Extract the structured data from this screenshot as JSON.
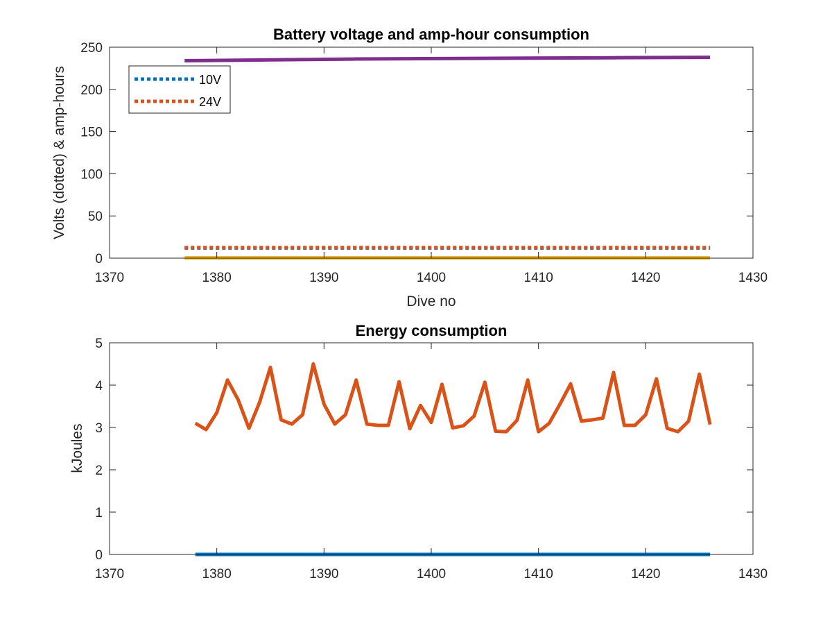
{
  "chart_data": [
    {
      "type": "line",
      "title": "Battery voltage and amp-hour consumption",
      "xlabel": "Dive no",
      "ylabel": "Volts (dotted) & amp-hours",
      "xlim": [
        1370,
        1430
      ],
      "ylim": [
        0,
        250
      ],
      "xticks": [
        1370,
        1380,
        1390,
        1400,
        1410,
        1420,
        1430
      ],
      "yticks": [
        0,
        50,
        100,
        150,
        200,
        250
      ],
      "legend_position": "top-left",
      "grid": false,
      "series": [
        {
          "name": "10V",
          "style": "dotted",
          "color": "#0072BD",
          "x": [
            1377,
            1426
          ],
          "y": [
            12,
            12
          ],
          "in_legend": true
        },
        {
          "name": "24V",
          "style": "dotted",
          "color": "#D95319",
          "x": [
            1377,
            1426
          ],
          "y": [
            12.5,
            12.5
          ],
          "in_legend": true
        },
        {
          "style": "solid",
          "color": "#EDB120",
          "x": [
            1377,
            1426
          ],
          "y": [
            0.3,
            0.3
          ],
          "in_legend": false
        },
        {
          "style": "solid",
          "color": "#7E2F8E",
          "x": [
            1377,
            1385,
            1393,
            1401,
            1409,
            1417,
            1426
          ],
          "y": [
            234,
            235,
            236,
            236.5,
            237,
            237.5,
            238
          ],
          "in_legend": false
        }
      ]
    },
    {
      "type": "line",
      "title": "Energy consumption",
      "xlabel": "",
      "ylabel": "kJoules",
      "xlim": [
        1370,
        1430
      ],
      "ylim": [
        0,
        5
      ],
      "xticks": [
        1370,
        1380,
        1390,
        1400,
        1410,
        1420,
        1430
      ],
      "yticks": [
        0,
        1,
        2,
        3,
        4,
        5
      ],
      "grid": false,
      "series": [
        {
          "style": "solid",
          "color": "#0072BD",
          "x": [
            1378,
            1426
          ],
          "y": [
            0,
            0
          ]
        },
        {
          "style": "solid",
          "color": "#D95319",
          "x": [
            1378,
            1379,
            1380,
            1381,
            1382,
            1383,
            1384,
            1385,
            1386,
            1387,
            1388,
            1389,
            1390,
            1391,
            1392,
            1393,
            1394,
            1395,
            1396,
            1397,
            1398,
            1399,
            1400,
            1401,
            1402,
            1403,
            1404,
            1405,
            1406,
            1407,
            1408,
            1409,
            1410,
            1411,
            1412,
            1413,
            1414,
            1415,
            1416,
            1417,
            1418,
            1419,
            1420,
            1421,
            1422,
            1423,
            1424,
            1425,
            1426
          ],
          "y": [
            3.1,
            2.95,
            3.35,
            4.12,
            3.65,
            2.98,
            3.6,
            4.42,
            3.18,
            3.08,
            3.3,
            4.5,
            3.55,
            3.08,
            3.3,
            4.12,
            3.08,
            3.05,
            3.05,
            4.08,
            2.97,
            3.52,
            3.12,
            4.02,
            2.99,
            3.04,
            3.27,
            4.07,
            2.91,
            2.9,
            3.17,
            4.12,
            2.9,
            3.1,
            3.55,
            4.03,
            3.15,
            3.18,
            3.22,
            4.3,
            3.05,
            3.05,
            3.3,
            4.15,
            2.98,
            2.9,
            3.15,
            4.26,
            3.07
          ]
        }
      ]
    }
  ]
}
